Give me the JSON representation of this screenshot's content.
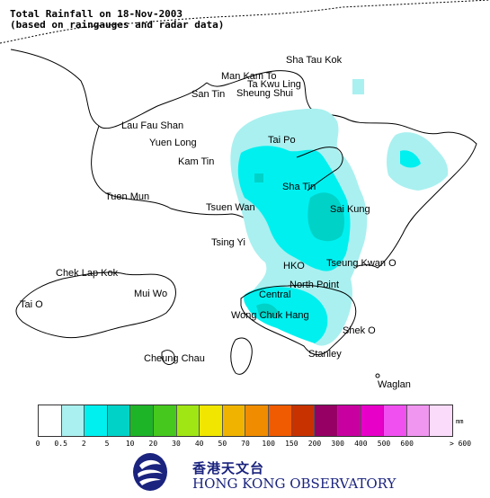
{
  "title": {
    "line1": "Total Rainfall on 18-Nov-2003",
    "line2": "(based on raingauges and radar data)"
  },
  "places": [
    {
      "name": "Sha Tau Kok",
      "id": "sha-tau-kok"
    },
    {
      "name": "Man Kam To",
      "id": "man-kam-to"
    },
    {
      "name": "Ta Kwu Ling",
      "id": "ta-kwu-ling"
    },
    {
      "name": "San Tin",
      "id": "san-tin"
    },
    {
      "name": "Sheung Shui",
      "id": "sheung-shui"
    },
    {
      "name": "Lau Fau Shan",
      "id": "lau-fau-shan"
    },
    {
      "name": "Yuen Long",
      "id": "yuen-long"
    },
    {
      "name": "Tai Po",
      "id": "tai-po"
    },
    {
      "name": "Kam Tin",
      "id": "kam-tin"
    },
    {
      "name": "Sha Tin",
      "id": "sha-tin"
    },
    {
      "name": "Tuen Mun",
      "id": "tuen-mun"
    },
    {
      "name": "Tsuen Wan",
      "id": "tsuen-wan"
    },
    {
      "name": "Sai Kung",
      "id": "sai-kung"
    },
    {
      "name": "Tsing Yi",
      "id": "tsing-yi"
    },
    {
      "name": "HKO",
      "id": "hko"
    },
    {
      "name": "Tseung Kwan O",
      "id": "tseung-kwan-o"
    },
    {
      "name": "Chek Lap Kok",
      "id": "chek-lap-kok"
    },
    {
      "name": "North Point",
      "id": "north-point"
    },
    {
      "name": "Central",
      "id": "central"
    },
    {
      "name": "Mui Wo",
      "id": "mui-wo"
    },
    {
      "name": "Tai O",
      "id": "tai-o"
    },
    {
      "name": "Wong Chuk Hang",
      "id": "wong-chuk-hang"
    },
    {
      "name": "Shek O",
      "id": "shek-o"
    },
    {
      "name": "Stanley",
      "id": "stanley"
    },
    {
      "name": "Cheung Chau",
      "id": "cheung-chau"
    },
    {
      "name": "Waglan",
      "id": "waglan"
    }
  ],
  "legend": {
    "unit": "mm",
    "ticks": [
      "0",
      "0.5",
      "2",
      "5",
      "10",
      "20",
      "30",
      "40",
      "50",
      "70",
      "100",
      "150",
      "200",
      "300",
      "400",
      "500",
      "600",
      "> 600"
    ],
    "colors": [
      "#ffffff",
      "#aaf0f0",
      "#00f0f0",
      "#00d2c8",
      "#1eb428",
      "#46c81e",
      "#a0e614",
      "#f0e600",
      "#f0b400",
      "#f08c00",
      "#f05a00",
      "#c83200",
      "#960064",
      "#c800a0",
      "#e600c8",
      "#f050f0",
      "#f096f0",
      "#fadcfa"
    ]
  },
  "logo": {
    "chinese": "香港天文台",
    "english": "HONG KONG OBSERVATORY"
  }
}
